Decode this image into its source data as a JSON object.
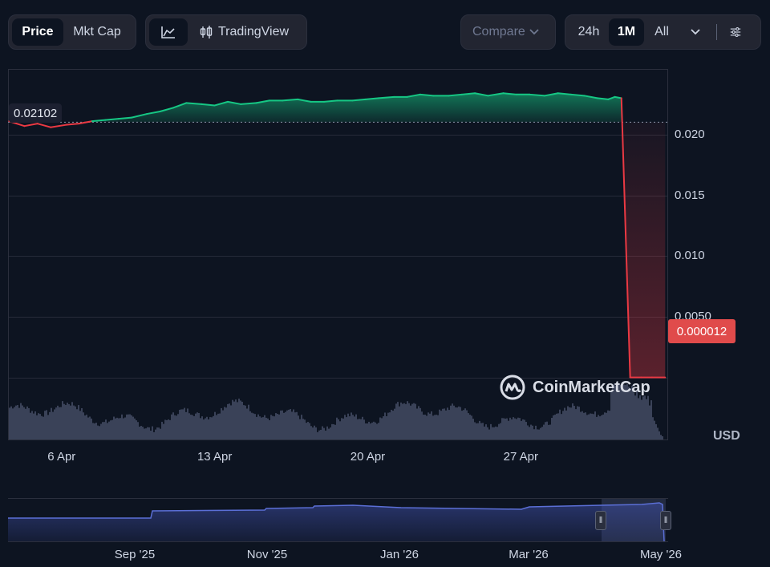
{
  "toolbar": {
    "price": "Price",
    "mkt_cap": "Mkt Cap",
    "tradingview": "TradingView",
    "compare": "Compare",
    "range_24h": "24h",
    "range_1m": "1M",
    "range_all": "All"
  },
  "badges": {
    "open_price": "0.02102",
    "current_price": "0.000012"
  },
  "watermark": "CoinMarketCap",
  "currency": "USD",
  "colors": {
    "up": "#16c784",
    "down": "#ea3943",
    "volume": "#3a4258",
    "navigator": "#5b6fd6",
    "background": "#0d1421"
  },
  "chart_data": {
    "type": "area",
    "y_axis": {
      "ticks": [
        0.02,
        0.015,
        0.01,
        0.005,
        0.0
      ],
      "tick_labels": [
        "0.020",
        "0.015",
        "0.010",
        "0.0050",
        ""
      ],
      "ylim": [
        -0.0051,
        0.0254
      ]
    },
    "x_axis": {
      "tick_labels": [
        "6 Apr",
        "13 Apr",
        "20 Apr",
        "27 Apr"
      ],
      "tick_days": [
        6,
        13,
        20,
        27
      ],
      "xlim_days": [
        3.55,
        33.7
      ]
    },
    "baseline": 0.02102,
    "last_value": 1.2e-05,
    "series": [
      {
        "x_days": [
          3.6,
          4.3,
          4.9,
          5.5,
          6.2,
          6.8,
          7.4,
          8.0,
          8.6,
          9.2,
          9.9,
          10.5,
          11.1,
          11.7,
          12.4,
          13.0,
          13.6,
          14.2,
          14.9,
          15.5,
          16.1,
          16.8,
          17.4,
          18.0,
          18.6,
          19.3,
          19.9,
          20.5,
          21.2,
          21.8,
          22.4,
          23.0,
          23.7,
          24.3,
          24.9,
          25.5,
          26.2,
          26.8,
          27.4,
          28.1,
          28.7,
          29.3,
          29.9,
          30.5,
          31.0,
          31.3,
          31.6,
          32.0,
          32.5,
          33.0,
          33.6
        ],
        "values": [
          0.0211,
          0.0207,
          0.0209,
          0.0206,
          0.0208,
          0.0209,
          0.0211,
          0.0212,
          0.0213,
          0.0214,
          0.0217,
          0.0219,
          0.0222,
          0.0226,
          0.0225,
          0.0224,
          0.0227,
          0.0225,
          0.0226,
          0.0228,
          0.0228,
          0.0229,
          0.0227,
          0.0227,
          0.0228,
          0.0228,
          0.0229,
          0.023,
          0.0231,
          0.0231,
          0.0233,
          0.0232,
          0.0232,
          0.0233,
          0.0234,
          0.0232,
          0.0234,
          0.0233,
          0.0233,
          0.0232,
          0.0234,
          0.0233,
          0.0232,
          0.023,
          0.0229,
          0.0231,
          0.023,
          1.2e-05,
          1.2e-05,
          1.2e-05,
          1.2e-05
        ]
      }
    ]
  },
  "navigator": {
    "tick_labels": [
      "Sep '25",
      "Nov '25",
      "Jan '26",
      "Mar '26",
      "May '26"
    ]
  }
}
